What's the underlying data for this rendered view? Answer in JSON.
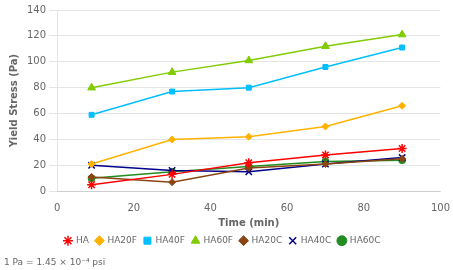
{
  "chart_data": {
    "type": "line",
    "xlabel": "Time (min)",
    "ylabel": "Yield Stress (Pa)",
    "annotation": "1 Pa = 1.45 × 10⁻⁴ psi",
    "x": [
      9,
      30,
      50,
      70,
      90
    ],
    "xlim": [
      0,
      100
    ],
    "ylim": [
      0,
      140
    ],
    "xticks": [
      0,
      20,
      40,
      60,
      80,
      100
    ],
    "yticks": [
      0,
      20,
      40,
      60,
      80,
      100,
      120,
      140
    ],
    "grid": "y",
    "legend": "bottom",
    "series": [
      {
        "name": "HA",
        "color": "#FF0000",
        "marker": "star",
        "values": [
          5,
          13,
          22,
          28,
          33
        ]
      },
      {
        "name": "HA20F",
        "color": "#FFB300",
        "marker": "diamond",
        "values": [
          21,
          40,
          42,
          50,
          66
        ]
      },
      {
        "name": "HA40F",
        "color": "#00BFFF",
        "marker": "square",
        "values": [
          59,
          77,
          80,
          96,
          111
        ]
      },
      {
        "name": "HA60F",
        "color": "#80CC00",
        "marker": "triangle",
        "values": [
          80,
          92,
          101,
          112,
          121
        ]
      },
      {
        "name": "HA20C",
        "color": "#8B4513",
        "marker": "diamond",
        "values": [
          11,
          7,
          18,
          21,
          25
        ]
      },
      {
        "name": "HA40C",
        "color": "#00008B",
        "marker": "x",
        "values": [
          20,
          16,
          15,
          21,
          26
        ]
      },
      {
        "name": "HA60C",
        "color": "#228B22",
        "marker": "circle",
        "values": [
          10,
          15,
          19,
          23,
          24
        ]
      }
    ]
  }
}
